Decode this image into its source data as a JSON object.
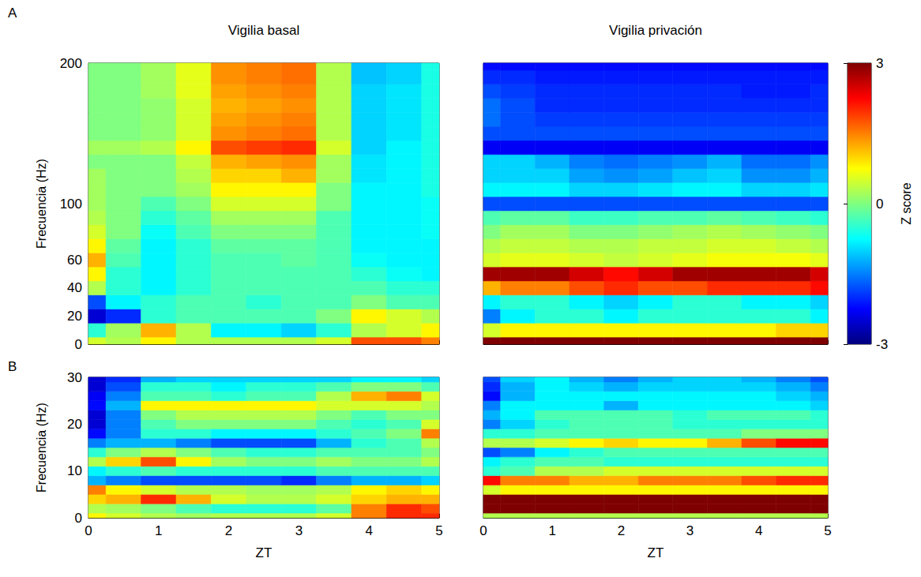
{
  "chart_data": [
    {
      "type": "heatmap",
      "panel": "A",
      "title": "Vigilia basal",
      "y_label": "Frecuencia (Hz)",
      "tick_labels": "y",
      "xlim": [
        0,
        5
      ],
      "xticks": [
        0,
        1,
        2,
        3,
        4,
        5
      ],
      "ylim": [
        0,
        200
      ],
      "yticks": [
        0,
        20,
        40,
        60,
        100,
        200
      ],
      "x": [
        0,
        0.5,
        1,
        1.5,
        2,
        2.5,
        3,
        3.5,
        4,
        4.5,
        5
      ],
      "y": [
        0,
        10,
        20,
        30,
        40,
        50,
        60,
        70,
        80,
        90,
        100,
        110,
        120,
        130,
        140,
        150,
        160,
        170,
        180,
        190,
        200
      ],
      "z": [
        [
          0.5,
          0.3,
          0.8,
          0.3,
          0.3,
          0.3,
          0.3,
          0.5,
          1.8,
          1.8,
          1.5
        ],
        [
          -0.5,
          0.2,
          1.2,
          0.3,
          -0.8,
          -0.8,
          -1.0,
          -0.5,
          0.3,
          0.5,
          0.8
        ],
        [
          -2.5,
          -2.0,
          -0.5,
          -0.3,
          -0.3,
          -0.3,
          -0.3,
          0,
          0.8,
          0.5,
          0.3
        ],
        [
          -1.8,
          -0.8,
          -0.5,
          -0.3,
          -0.3,
          -0.5,
          -0.3,
          -0.3,
          0,
          -0.3,
          -0.3
        ],
        [
          0.3,
          -0.5,
          -0.8,
          -0.5,
          -0.3,
          -0.3,
          -0.3,
          -0.3,
          -0.3,
          -0.5,
          -0.5
        ],
        [
          0.8,
          -0.5,
          -0.8,
          -0.5,
          -0.3,
          -0.3,
          -0.3,
          -0.3,
          -0.5,
          -0.7,
          -0.8
        ],
        [
          1.2,
          -0.3,
          -0.8,
          -0.5,
          -0.3,
          -0.3,
          -0.2,
          -0.3,
          -0.7,
          -0.8,
          -0.8
        ],
        [
          0.8,
          -0.2,
          -0.8,
          -0.5,
          -0.2,
          -0.2,
          -0.2,
          -0.3,
          -0.8,
          -0.8,
          -0.8
        ],
        [
          0.5,
          0,
          -0.7,
          -0.3,
          0,
          0,
          0,
          -0.3,
          -0.8,
          -0.8,
          -0.7
        ],
        [
          0.3,
          0,
          -0.5,
          -0.2,
          0.2,
          0.2,
          0.2,
          -0.3,
          -0.8,
          -0.8,
          -0.7
        ],
        [
          0.2,
          0,
          -0.3,
          0,
          0.5,
          0.5,
          0.5,
          0,
          -0.8,
          -0.8,
          -0.7
        ],
        [
          0.2,
          0,
          0,
          0.2,
          0.8,
          0.8,
          0.8,
          0,
          -0.8,
          -0.8,
          -0.6
        ],
        [
          0.2,
          0,
          0,
          0.3,
          1.0,
          1.0,
          1.2,
          0.2,
          -0.9,
          -0.8,
          -0.6
        ],
        [
          0,
          0,
          0,
          0.4,
          1.2,
          1.3,
          1.4,
          0.2,
          -0.9,
          -0.8,
          -0.6
        ],
        [
          0.2,
          0.2,
          0.3,
          0.8,
          1.8,
          1.9,
          2.0,
          0.5,
          -1.0,
          -0.8,
          -0.6
        ],
        [
          0,
          0,
          0.1,
          0.5,
          1.4,
          1.5,
          1.6,
          0.3,
          -1.0,
          -0.9,
          -0.6
        ],
        [
          0,
          0,
          0.1,
          0.5,
          1.3,
          1.4,
          1.5,
          0.3,
          -1.0,
          -0.9,
          -0.6
        ],
        [
          0,
          0,
          0.1,
          0.5,
          1.2,
          1.3,
          1.4,
          0.3,
          -1.0,
          -0.9,
          -0.6
        ],
        [
          0,
          0,
          0.2,
          0.6,
          1.3,
          1.4,
          1.5,
          0.3,
          -1.0,
          -0.9,
          -0.6
        ],
        [
          0,
          0,
          0.2,
          0.6,
          1.4,
          1.5,
          1.6,
          0.3,
          -1.1,
          -1.0,
          -0.6
        ],
        [
          0,
          0,
          0.2,
          0.6,
          1.4,
          1.5,
          1.6,
          0.3,
          -1.1,
          -1.0,
          -0.6
        ]
      ]
    },
    {
      "type": "heatmap",
      "title": "Vigilia privación",
      "tick_labels": false,
      "xlim": [
        0,
        5
      ],
      "xticks": [
        0,
        1,
        2,
        3,
        4,
        5
      ],
      "ylim": [
        0,
        200
      ],
      "yticks": [
        0,
        20,
        40,
        60,
        100,
        200
      ],
      "colorbar": {
        "label": "Z score",
        "range": [
          -3,
          3
        ],
        "ticks": [
          -3,
          0,
          3
        ]
      },
      "x": [
        0,
        0.5,
        1,
        1.5,
        2,
        2.5,
        3,
        3.5,
        4,
        4.5,
        5
      ],
      "y": [
        0,
        10,
        20,
        30,
        40,
        50,
        60,
        70,
        80,
        90,
        100,
        110,
        120,
        130,
        140,
        150,
        160,
        170,
        180,
        190,
        200
      ],
      "z": [
        [
          3,
          3,
          3,
          3,
          3,
          3,
          3,
          3,
          3,
          3,
          3
        ],
        [
          0.5,
          0.8,
          0.8,
          0.8,
          0.8,
          0.8,
          0.8,
          0.8,
          0.8,
          1.0,
          1.0
        ],
        [
          -1.5,
          -0.8,
          -0.5,
          -0.5,
          -0.8,
          -0.5,
          -0.5,
          -0.5,
          -0.5,
          -0.5,
          -0.8
        ],
        [
          -0.8,
          -0.5,
          -0.5,
          -0.8,
          -1.0,
          -0.8,
          -0.5,
          -0.5,
          -0.8,
          -0.8,
          -1.0
        ],
        [
          1.2,
          1.5,
          1.5,
          1.8,
          2.0,
          1.8,
          1.8,
          2.0,
          2.0,
          2.0,
          2.2
        ],
        [
          2.8,
          2.8,
          2.8,
          2.5,
          2.2,
          2.5,
          2.8,
          2.8,
          2.8,
          2.8,
          2.5
        ],
        [
          0.5,
          0.6,
          0.6,
          0.5,
          0.4,
          0.5,
          0.6,
          0.7,
          0.7,
          0.7,
          0.6
        ],
        [
          0.3,
          0.4,
          0.4,
          0.3,
          0.3,
          0.4,
          0.4,
          0.5,
          0.5,
          0.4,
          0.3
        ],
        [
          0,
          0.2,
          0.2,
          0,
          0,
          0.1,
          0.2,
          0.3,
          0.2,
          0.1,
          0
        ],
        [
          -0.3,
          -0.2,
          -0.2,
          -0.4,
          -0.4,
          -0.3,
          -0.3,
          -0.2,
          -0.3,
          -0.4,
          -0.5
        ],
        [
          -1.8,
          -1.8,
          -1.8,
          -1.8,
          -1.8,
          -1.8,
          -1.8,
          -1.8,
          -1.8,
          -1.8,
          -1.8
        ],
        [
          -0.8,
          -0.8,
          -0.8,
          -1.0,
          -1.0,
          -0.9,
          -0.8,
          -0.8,
          -1.0,
          -1.0,
          -0.9
        ],
        [
          -1.0,
          -1.0,
          -1.0,
          -1.3,
          -1.4,
          -1.3,
          -1.1,
          -1.0,
          -1.4,
          -1.4,
          -1.2
        ],
        [
          -1.0,
          -1.0,
          -1.2,
          -1.5,
          -1.6,
          -1.5,
          -1.4,
          -1.2,
          -1.6,
          -1.6,
          -1.4
        ],
        [
          -2.3,
          -2.3,
          -2.3,
          -2.3,
          -2.3,
          -2.3,
          -2.3,
          -2.3,
          -2.3,
          -2.3,
          -2.3
        ],
        [
          -1.8,
          -1.8,
          -1.8,
          -1.8,
          -1.8,
          -1.8,
          -1.8,
          -1.8,
          -1.8,
          -1.8,
          -1.8
        ],
        [
          -1.6,
          -1.8,
          -1.9,
          -1.9,
          -1.9,
          -1.9,
          -1.9,
          -1.9,
          -1.9,
          -1.9,
          -1.9
        ],
        [
          -1.6,
          -1.8,
          -2.0,
          -2.0,
          -2.0,
          -2.0,
          -2.0,
          -2.0,
          -2.0,
          -2.0,
          -2.0
        ],
        [
          -1.8,
          -1.9,
          -2.0,
          -2.0,
          -2.0,
          -2.0,
          -2.0,
          -2.0,
          -2.1,
          -2.1,
          -2.0
        ],
        [
          -2.0,
          -2.0,
          -2.1,
          -2.1,
          -2.1,
          -2.1,
          -2.1,
          -2.1,
          -2.1,
          -2.1,
          -2.1
        ],
        [
          -2.2,
          -2.2,
          -2.2,
          -2.2,
          -2.2,
          -2.2,
          -2.2,
          -2.2,
          -2.2,
          -2.2,
          -2.2
        ]
      ]
    },
    {
      "type": "heatmap",
      "panel": "B",
      "x_label": "ZT",
      "y_label": "Frecuencia (Hz)",
      "xlim": [
        0,
        5
      ],
      "xticks": [
        0,
        1,
        2,
        3,
        4,
        5
      ],
      "ylim": [
        0,
        30
      ],
      "yticks": [
        0,
        10,
        20,
        30
      ],
      "x": [
        0,
        0.5,
        1,
        1.5,
        2,
        2.5,
        3,
        3.5,
        4,
        4.5,
        5
      ],
      "y": [
        0,
        2,
        4,
        6,
        8,
        10,
        12,
        14,
        16,
        18,
        20,
        22,
        24,
        26,
        28,
        30
      ],
      "z": [
        [
          0.8,
          0.5,
          0.3,
          0.2,
          0.3,
          0.3,
          0.3,
          0.5,
          1.5,
          2.0,
          2.0
        ],
        [
          0.3,
          0.2,
          0,
          -0.3,
          -0.5,
          -0.5,
          -0.5,
          -0.2,
          1.5,
          2.0,
          1.8
        ],
        [
          1.0,
          1.2,
          2.0,
          1.2,
          0.5,
          0.3,
          0.3,
          0.5,
          1.0,
          1.2,
          1.2
        ],
        [
          1.5,
          0.8,
          0.5,
          0.3,
          0.3,
          0.2,
          0.2,
          0.3,
          0.8,
          1.0,
          0.8
        ],
        [
          -1.2,
          -1.5,
          -1.8,
          -1.8,
          -1.8,
          -1.8,
          -2.0,
          -1.5,
          -1.2,
          -1.2,
          -1.0
        ],
        [
          -0.8,
          -0.5,
          -0.3,
          -0.5,
          -0.5,
          -0.5,
          -0.5,
          -0.3,
          -0.3,
          -0.3,
          -0.3
        ],
        [
          0.3,
          1.0,
          1.8,
          0.8,
          0.2,
          0,
          0,
          0.2,
          0,
          0,
          0.3
        ],
        [
          -0.5,
          0,
          0.3,
          0,
          -0.3,
          -0.5,
          -0.5,
          -0.3,
          -0.3,
          -0.3,
          0
        ],
        [
          -1.5,
          -1.2,
          -1.2,
          -1.5,
          -1.8,
          -1.8,
          -1.8,
          -1.2,
          -0.5,
          -0.3,
          0.3
        ],
        [
          -2.2,
          -1.5,
          -0.5,
          -0.5,
          -0.8,
          -0.8,
          -0.8,
          -0.5,
          -0.3,
          0,
          1.5
        ],
        [
          -2.5,
          -1.5,
          -0.3,
          0,
          0,
          0,
          0,
          -0.3,
          -0.5,
          -0.3,
          0.5
        ],
        [
          -2.5,
          -1.5,
          0,
          0.3,
          0.3,
          0.3,
          0.3,
          0,
          -0.3,
          0,
          0
        ],
        [
          -2.2,
          -1.2,
          0.8,
          0.8,
          0.8,
          0.8,
          0.8,
          0.5,
          0.5,
          0.5,
          0.3
        ],
        [
          -2.3,
          -1.5,
          -0.3,
          -0.3,
          -0.5,
          -0.3,
          -0.3,
          0.3,
          1.2,
          1.5,
          0.5
        ],
        [
          -2.5,
          -1.8,
          -0.5,
          -0.5,
          -0.8,
          -0.5,
          -0.5,
          -0.3,
          0,
          0,
          -0.3
        ],
        [
          -2.5,
          -2.0,
          -1.2,
          -1.0,
          -1.0,
          -1.0,
          -1.0,
          -1.0,
          -0.8,
          -0.8,
          -1.0
        ]
      ]
    },
    {
      "type": "heatmap",
      "x_label": "ZT",
      "tick_labels": "x",
      "xlim": [
        0,
        5
      ],
      "xticks": [
        0,
        1,
        2,
        3,
        4,
        5
      ],
      "ylim": [
        0,
        30
      ],
      "yticks": [
        0,
        10,
        20,
        30
      ],
      "x": [
        0,
        0.5,
        1,
        1.5,
        2,
        2.5,
        3,
        3.5,
        4,
        4.5,
        5
      ],
      "y": [
        0,
        2,
        4,
        6,
        8,
        10,
        12,
        14,
        16,
        18,
        20,
        22,
        24,
        26,
        28,
        30
      ],
      "z": [
        [
          0.3,
          0.3,
          0.3,
          0.3,
          0.3,
          0.3,
          0.3,
          0.3,
          0.3,
          0.3,
          0.3
        ],
        [
          3,
          3,
          3,
          3,
          3,
          3,
          3,
          3,
          3,
          3,
          3
        ],
        [
          3,
          3,
          3,
          3,
          3,
          3,
          3,
          3,
          3,
          3,
          3
        ],
        [
          0.5,
          0.8,
          0.8,
          0.8,
          0.8,
          0.8,
          0.8,
          0.8,
          0.8,
          0.8,
          0.8
        ],
        [
          2.2,
          1.5,
          1.5,
          1.2,
          1.2,
          1.5,
          1.5,
          1.5,
          1.8,
          2.0,
          2.0
        ],
        [
          -0.5,
          -0.3,
          0.3,
          0.3,
          0.5,
          0.5,
          0.5,
          0.5,
          0.5,
          0.5,
          0.5
        ],
        [
          -0.8,
          -0.5,
          -0.3,
          -0.3,
          -0.5,
          -0.5,
          -0.5,
          -0.5,
          -0.5,
          -0.5,
          -0.5
        ],
        [
          -1.8,
          -1.5,
          -0.8,
          -0.5,
          -0.3,
          -0.3,
          -0.3,
          -0.3,
          -0.3,
          -0.3,
          -0.3
        ],
        [
          0.3,
          0.3,
          0.5,
          0.8,
          1.0,
          0.8,
          0.8,
          1.2,
          1.8,
          2.2,
          2.2
        ],
        [
          -0.5,
          -0.5,
          -0.3,
          -0.3,
          -0.3,
          -0.3,
          -0.3,
          -0.3,
          0,
          0,
          0
        ],
        [
          -1.5,
          -1.0,
          -0.5,
          -0.3,
          -0.3,
          -0.3,
          -0.5,
          -0.5,
          -0.5,
          -0.5,
          -0.5
        ],
        [
          -1.2,
          -0.8,
          -0.3,
          -0.3,
          -0.3,
          -0.3,
          -0.5,
          -0.3,
          -0.3,
          -0.3,
          -0.5
        ],
        [
          -1.5,
          -0.8,
          -0.8,
          -0.8,
          -1.2,
          -0.8,
          -0.8,
          -0.8,
          -0.8,
          -0.8,
          -1.0
        ],
        [
          -2.2,
          -1.2,
          -0.8,
          -0.8,
          -0.8,
          -0.8,
          -0.8,
          -0.8,
          -0.8,
          -1.0,
          -1.2
        ],
        [
          -2.0,
          -1.2,
          -0.8,
          -1.0,
          -1.2,
          -1.0,
          -1.0,
          -1.0,
          -1.0,
          -1.2,
          -1.5
        ],
        [
          -1.8,
          -1.0,
          -0.8,
          -1.2,
          -1.5,
          -1.2,
          -1.0,
          -1.0,
          -1.2,
          -1.5,
          -1.8
        ]
      ]
    }
  ]
}
